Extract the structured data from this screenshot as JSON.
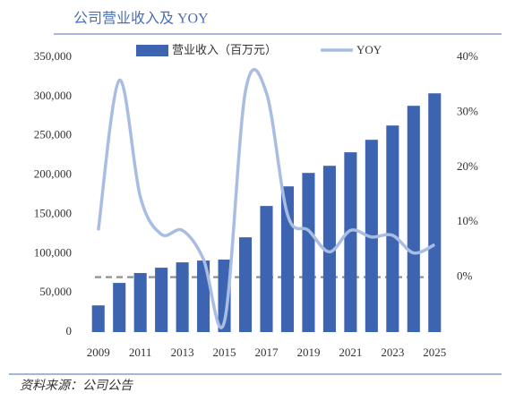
{
  "chart_data": {
    "type": "bar_line",
    "title": "公司营业收入及 YOY",
    "source": "资料来源：公司公告",
    "categories": [
      "2009",
      null,
      "2011",
      null,
      "2013",
      null,
      "2015",
      null,
      "2017",
      null,
      "2019",
      null,
      "2021",
      null,
      "2023",
      null,
      "2025"
    ],
    "series": [
      {
        "name": "营业收入（百万元）",
        "type": "bar",
        "color": "#3d64b0",
        "values": [
          34000,
          62600,
          75200,
          82000,
          88800,
          91100,
          92300,
          120700,
          160600,
          185600,
          202700,
          211800,
          229000,
          244900,
          263100,
          288200,
          304100
        ]
      },
      {
        "name": "YOY",
        "type": "line",
        "axis": "y2",
        "color": "#a9bde3",
        "values": [
          8.5,
          35.8,
          14.6,
          7.8,
          8.5,
          3.3,
          -8.1,
          33.8,
          33.5,
          11.4,
          8.5,
          4.6,
          8.5,
          7.3,
          7.6,
          4.4,
          5.9
        ]
      }
    ],
    "ylim": [
      0,
      350000
    ],
    "yticks": [
      0,
      {
        "value": 50000,
        "label": "50,000"
      },
      {
        "value": 100000,
        "label": "100,000"
      },
      {
        "value": 150000,
        "label": "150,000"
      },
      {
        "value": 200000,
        "label": "200,000"
      },
      {
        "value": 250000,
        "label": "250,000"
      },
      {
        "value": 300000,
        "label": "300,000"
      },
      {
        "value": 350000,
        "label": "350,000"
      }
    ],
    "y2lim": [
      -10,
      40
    ],
    "y2ticks": [
      {
        "value": 0,
        "label": "0%"
      },
      {
        "value": 10,
        "label": "10%"
      },
      {
        "value": 20,
        "label": "20%"
      },
      {
        "value": 30,
        "label": "30%"
      },
      {
        "value": 40,
        "label": "40%"
      }
    ],
    "legend": "top"
  }
}
